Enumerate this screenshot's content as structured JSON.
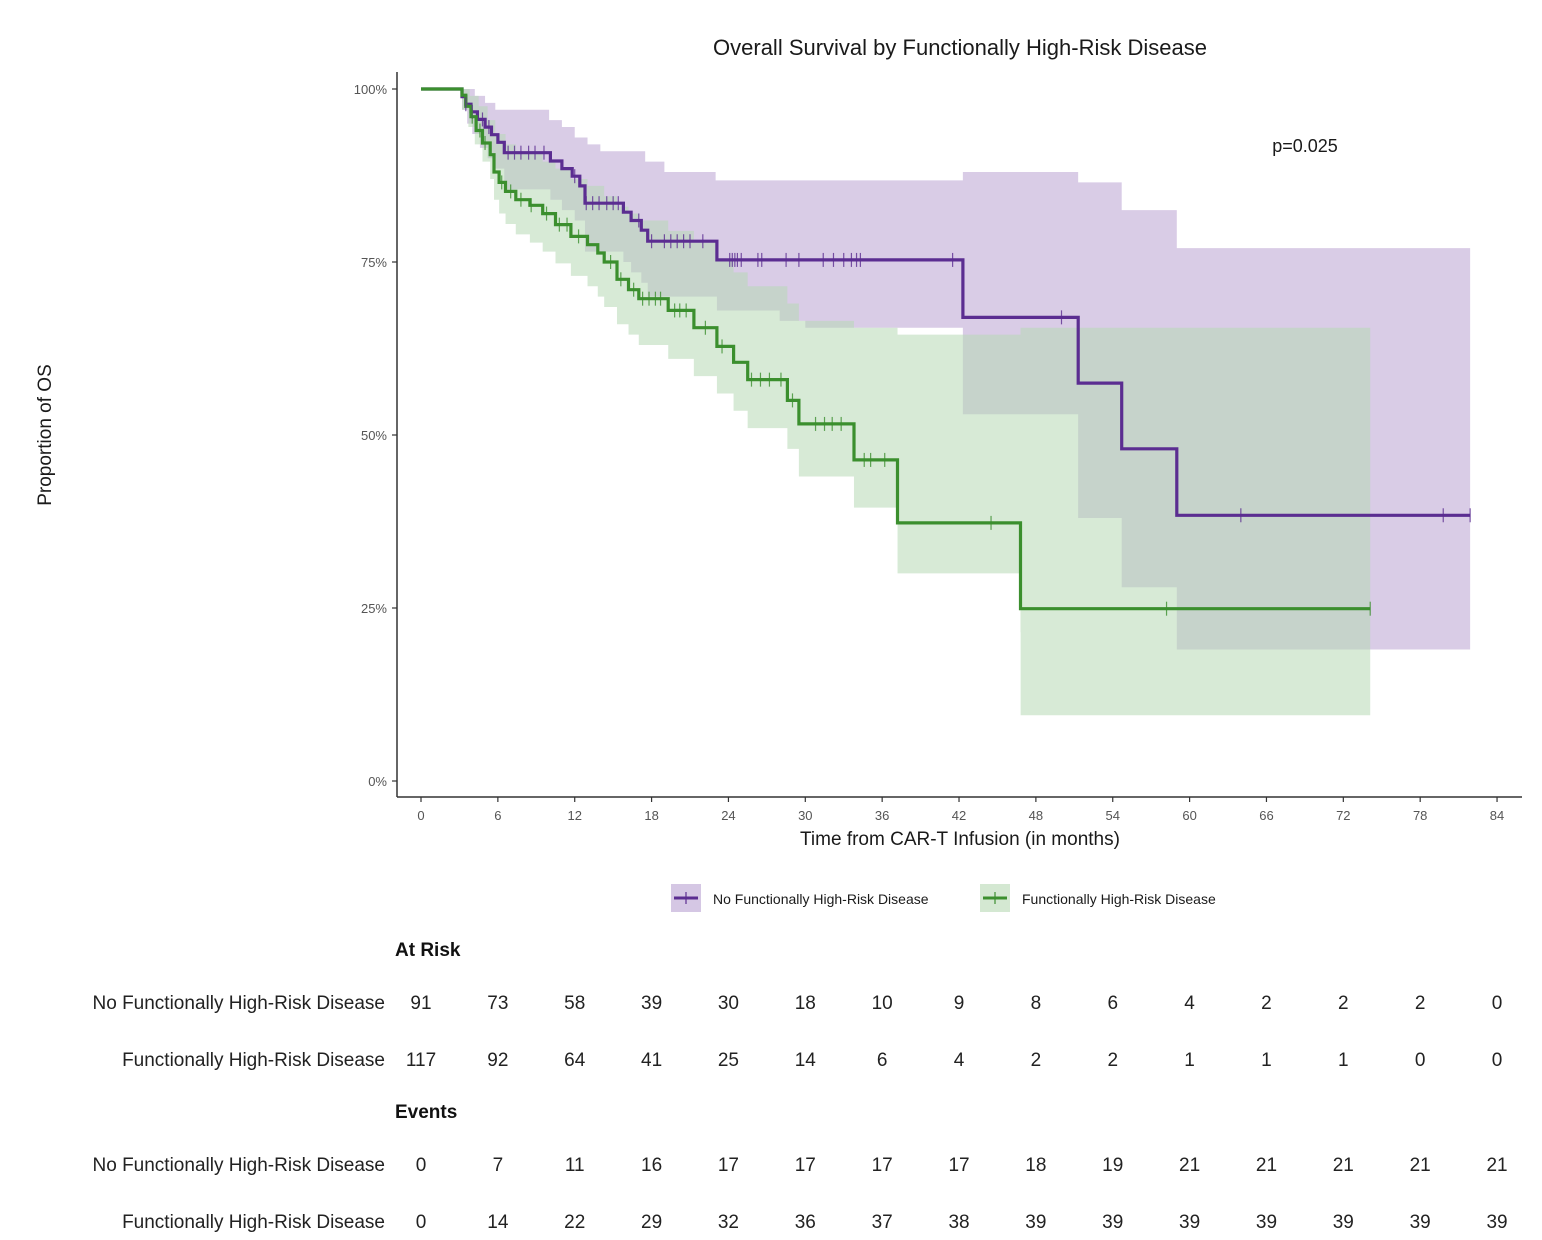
{
  "chart_data": {
    "type": "line",
    "subtype": "kaplan-meier",
    "title": "Overall Survival by Functionally High-Risk Disease",
    "xlabel": "Time from CAR-T Infusion (in months)",
    "ylabel": "Proportion of OS",
    "xlim": [
      -1.5,
      86.5
    ],
    "ylim": [
      0,
      1.03
    ],
    "x_ticks": [
      0,
      6,
      12,
      18,
      24,
      30,
      36,
      42,
      48,
      54,
      60,
      66,
      72,
      78,
      84
    ],
    "x_tick_labels": [
      "0",
      "6",
      "12",
      "18",
      "24",
      "30",
      "36",
      "42",
      "48",
      "54",
      "60",
      "66",
      "72",
      "78",
      "84"
    ],
    "y_ticks": [
      0,
      0.25,
      0.5,
      0.75,
      1.0
    ],
    "y_tick_labels": [
      "0%",
      "25%",
      "50%",
      "75%",
      "100%"
    ],
    "grid": false,
    "annotation": "p=0.025",
    "legend_position": "bottom",
    "series": [
      {
        "name": "No Functionally High-Risk Disease",
        "color": "#5b2d91",
        "ci_color": "#b9a2d2",
        "steps": [
          [
            0,
            1.0
          ],
          [
            3.2,
            0.989
          ],
          [
            3.5,
            0.978
          ],
          [
            3.9,
            0.967
          ],
          [
            4.4,
            0.956
          ],
          [
            5.0,
            0.945
          ],
          [
            5.5,
            0.934
          ],
          [
            6.0,
            0.923
          ],
          [
            6.5,
            0.908
          ],
          [
            10.1,
            0.896
          ],
          [
            11.0,
            0.885
          ],
          [
            11.8,
            0.874
          ],
          [
            12.4,
            0.86
          ],
          [
            12.8,
            0.835
          ],
          [
            15.8,
            0.822
          ],
          [
            16.4,
            0.81
          ],
          [
            17.2,
            0.796
          ],
          [
            17.7,
            0.78
          ],
          [
            23.1,
            0.753
          ],
          [
            42.3,
            0.67
          ],
          [
            51.3,
            0.575
          ],
          [
            54.7,
            0.48
          ],
          [
            59.0,
            0.384
          ],
          [
            81.9,
            0.384
          ]
        ],
        "ci_upper": [
          [
            0,
            1.0
          ],
          [
            3.8,
            1.0
          ],
          [
            4.2,
            0.99
          ],
          [
            5.0,
            0.98
          ],
          [
            5.8,
            0.97
          ],
          [
            10.0,
            0.955
          ],
          [
            11.0,
            0.945
          ],
          [
            12.0,
            0.93
          ],
          [
            13.0,
            0.92
          ],
          [
            14.0,
            0.91
          ],
          [
            17.5,
            0.895
          ],
          [
            19.0,
            0.88
          ],
          [
            23.0,
            0.868
          ],
          [
            42.3,
            0.88
          ],
          [
            51.3,
            0.865
          ],
          [
            54.7,
            0.825
          ],
          [
            59.0,
            0.77
          ],
          [
            81.9,
            0.77
          ]
        ],
        "ci_lower": [
          [
            0,
            1.0
          ],
          [
            3.2,
            0.97
          ],
          [
            3.6,
            0.95
          ],
          [
            4.0,
            0.935
          ],
          [
            4.6,
            0.915
          ],
          [
            5.2,
            0.9
          ],
          [
            5.8,
            0.885
          ],
          [
            6.5,
            0.855
          ],
          [
            10.1,
            0.84
          ],
          [
            11.0,
            0.825
          ],
          [
            12.0,
            0.81
          ],
          [
            12.8,
            0.765
          ],
          [
            15.8,
            0.75
          ],
          [
            16.4,
            0.735
          ],
          [
            17.2,
            0.72
          ],
          [
            17.7,
            0.7
          ],
          [
            23.1,
            0.68
          ],
          [
            28.0,
            0.665
          ],
          [
            30.0,
            0.655
          ],
          [
            33.5,
            0.655
          ],
          [
            42.3,
            0.53
          ],
          [
            51.3,
            0.38
          ],
          [
            54.7,
            0.28
          ],
          [
            59.0,
            0.19
          ],
          [
            81.9,
            0.19
          ]
        ],
        "censor_times": [
          3.5,
          4.0,
          4.8,
          5.3,
          6.8,
          7.3,
          7.8,
          8.4,
          8.9,
          9.6,
          12.0,
          12.9,
          13.4,
          13.9,
          14.5,
          15.0,
          15.4,
          17.0,
          18.0,
          19.0,
          19.5,
          20.0,
          20.5,
          21.0,
          22.0,
          24.1,
          24.3,
          24.5,
          24.7,
          25.0,
          26.3,
          26.6,
          28.5,
          29.5,
          31.4,
          32.2,
          33.0,
          33.6,
          34.0,
          34.3,
          41.5,
          50.0,
          64.0,
          79.8,
          81.9
        ],
        "legend_label": "No Functionally High-Risk Disease"
      },
      {
        "name": "Functionally High-Risk Disease",
        "color": "#3b8f2e",
        "ci_color": "#b7d9b4",
        "steps": [
          [
            0,
            1.0
          ],
          [
            3.2,
            0.991
          ],
          [
            3.5,
            0.975
          ],
          [
            3.9,
            0.96
          ],
          [
            4.3,
            0.94
          ],
          [
            4.8,
            0.922
          ],
          [
            5.4,
            0.905
          ],
          [
            5.7,
            0.88
          ],
          [
            6.1,
            0.865
          ],
          [
            6.6,
            0.852
          ],
          [
            7.4,
            0.84
          ],
          [
            8.5,
            0.832
          ],
          [
            9.5,
            0.82
          ],
          [
            10.5,
            0.804
          ],
          [
            11.7,
            0.787
          ],
          [
            13.0,
            0.775
          ],
          [
            13.8,
            0.763
          ],
          [
            14.3,
            0.75
          ],
          [
            15.3,
            0.725
          ],
          [
            16.2,
            0.71
          ],
          [
            17.0,
            0.697
          ],
          [
            19.3,
            0.68
          ],
          [
            21.3,
            0.655
          ],
          [
            23.1,
            0.628
          ],
          [
            24.4,
            0.605
          ],
          [
            25.5,
            0.58
          ],
          [
            28.6,
            0.55
          ],
          [
            29.5,
            0.516
          ],
          [
            33.8,
            0.464
          ],
          [
            37.2,
            0.373
          ],
          [
            46.8,
            0.249
          ],
          [
            74.1,
            0.249
          ]
        ],
        "ci_upper": [
          [
            0,
            1.0
          ],
          [
            3.2,
            1.0
          ],
          [
            3.8,
            0.99
          ],
          [
            4.5,
            0.975
          ],
          [
            5.2,
            0.955
          ],
          [
            5.8,
            0.935
          ],
          [
            6.6,
            0.92
          ],
          [
            7.4,
            0.91
          ],
          [
            9.5,
            0.895
          ],
          [
            10.5,
            0.885
          ],
          [
            11.7,
            0.87
          ],
          [
            13.0,
            0.86
          ],
          [
            14.3,
            0.845
          ],
          [
            15.3,
            0.83
          ],
          [
            16.2,
            0.82
          ],
          [
            17.0,
            0.81
          ],
          [
            19.3,
            0.795
          ],
          [
            21.3,
            0.78
          ],
          [
            23.1,
            0.755
          ],
          [
            24.4,
            0.735
          ],
          [
            25.5,
            0.715
          ],
          [
            28.6,
            0.69
          ],
          [
            29.5,
            0.665
          ],
          [
            33.8,
            0.655
          ],
          [
            37.2,
            0.645
          ],
          [
            42.3,
            0.645
          ],
          [
            46.8,
            0.655
          ],
          [
            74.1,
            0.655
          ]
        ],
        "ci_lower": [
          [
            0,
            1.0
          ],
          [
            3.2,
            0.97
          ],
          [
            3.7,
            0.945
          ],
          [
            4.2,
            0.92
          ],
          [
            4.8,
            0.895
          ],
          [
            5.4,
            0.87
          ],
          [
            5.7,
            0.84
          ],
          [
            6.1,
            0.82
          ],
          [
            6.6,
            0.805
          ],
          [
            7.4,
            0.79
          ],
          [
            8.5,
            0.778
          ],
          [
            9.5,
            0.765
          ],
          [
            10.5,
            0.748
          ],
          [
            11.7,
            0.73
          ],
          [
            13.0,
            0.715
          ],
          [
            13.8,
            0.7
          ],
          [
            14.3,
            0.685
          ],
          [
            15.3,
            0.66
          ],
          [
            16.2,
            0.645
          ],
          [
            17.0,
            0.63
          ],
          [
            19.3,
            0.61
          ],
          [
            21.3,
            0.585
          ],
          [
            23.1,
            0.56
          ],
          [
            24.4,
            0.535
          ],
          [
            25.5,
            0.51
          ],
          [
            28.6,
            0.48
          ],
          [
            29.5,
            0.44
          ],
          [
            33.8,
            0.395
          ],
          [
            37.2,
            0.3
          ],
          [
            46.8,
            0.215
          ],
          [
            46.81,
            0.095
          ],
          [
            74.1,
            0.095
          ]
        ],
        "censor_times": [
          4.0,
          4.6,
          5.0,
          6.3,
          7.0,
          7.8,
          8.6,
          9.8,
          10.8,
          11.4,
          12.3,
          14.8,
          15.6,
          16.6,
          17.3,
          17.8,
          18.3,
          18.7,
          19.8,
          20.2,
          20.7,
          22.2,
          23.5,
          25.8,
          26.5,
          27.2,
          28.1,
          29.0,
          30.8,
          31.5,
          32.1,
          32.8,
          34.6,
          35.1,
          36.2,
          44.5,
          58.2,
          74.1
        ],
        "legend_label": "Functionally High-Risk Disease"
      }
    ],
    "risk_table": {
      "at_risk_title": "At Risk",
      "events_title": "Events",
      "times": [
        0,
        6,
        12,
        18,
        24,
        30,
        36,
        42,
        48,
        54,
        60,
        66,
        72,
        78,
        84
      ],
      "at_risk": [
        {
          "label": "No Functionally High-Risk Disease",
          "values": [
            91,
            73,
            58,
            39,
            30,
            18,
            10,
            9,
            8,
            6,
            4,
            2,
            2,
            2,
            0
          ]
        },
        {
          "label": "Functionally High-Risk Disease",
          "values": [
            117,
            92,
            64,
            41,
            25,
            14,
            6,
            4,
            2,
            2,
            1,
            1,
            1,
            0,
            0
          ]
        }
      ],
      "events": [
        {
          "label": "No Functionally High-Risk Disease",
          "values": [
            0,
            7,
            11,
            16,
            17,
            17,
            17,
            17,
            18,
            19,
            21,
            21,
            21,
            21,
            21
          ]
        },
        {
          "label": "Functionally High-Risk Disease",
          "values": [
            0,
            14,
            22,
            29,
            32,
            36,
            37,
            38,
            39,
            39,
            39,
            39,
            39,
            39,
            39
          ]
        }
      ]
    }
  }
}
